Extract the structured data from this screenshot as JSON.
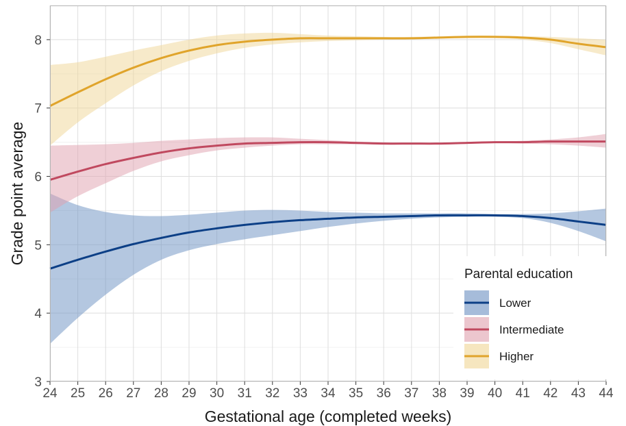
{
  "chart_data": {
    "type": "line",
    "xlabel": "Gestational age (completed weeks)",
    "ylabel": "Grade point average",
    "xlim": [
      24,
      44
    ],
    "ylim": [
      3,
      8.5
    ],
    "xticks": [
      24,
      25,
      26,
      27,
      28,
      29,
      30,
      31,
      32,
      33,
      34,
      35,
      36,
      37,
      38,
      39,
      40,
      41,
      42,
      43,
      44
    ],
    "yticks": [
      3,
      4,
      5,
      6,
      7,
      8
    ],
    "grid": true,
    "x": [
      24,
      25,
      26,
      27,
      28,
      29,
      30,
      31,
      32,
      33,
      34,
      35,
      36,
      37,
      38,
      39,
      40,
      41,
      42,
      43,
      44
    ],
    "legend": {
      "title": "Parental education",
      "position": "bottom-right"
    },
    "series": [
      {
        "name": "Lower",
        "color": "#0c3f86",
        "band_color": "#6a8fc2",
        "values": [
          4.65,
          4.78,
          4.9,
          5.01,
          5.1,
          5.18,
          5.24,
          5.29,
          5.33,
          5.36,
          5.38,
          5.4,
          5.41,
          5.42,
          5.43,
          5.43,
          5.43,
          5.42,
          5.39,
          5.34,
          5.29
        ],
        "lower": [
          3.55,
          3.93,
          4.27,
          4.56,
          4.78,
          4.92,
          5.01,
          5.08,
          5.14,
          5.2,
          5.26,
          5.31,
          5.35,
          5.38,
          5.4,
          5.41,
          5.41,
          5.39,
          5.32,
          5.2,
          5.05
        ],
        "upper": [
          5.75,
          5.58,
          5.48,
          5.43,
          5.42,
          5.44,
          5.47,
          5.5,
          5.51,
          5.5,
          5.48,
          5.47,
          5.46,
          5.46,
          5.46,
          5.46,
          5.45,
          5.45,
          5.46,
          5.49,
          5.53
        ]
      },
      {
        "name": "Intermediate",
        "color": "#c0495f",
        "band_color": "#dfa0ad",
        "values": [
          5.95,
          6.07,
          6.18,
          6.27,
          6.35,
          6.41,
          6.45,
          6.48,
          6.49,
          6.5,
          6.5,
          6.49,
          6.48,
          6.48,
          6.48,
          6.49,
          6.5,
          6.5,
          6.51,
          6.51,
          6.51
        ],
        "lower": [
          5.47,
          5.71,
          5.9,
          6.08,
          6.22,
          6.31,
          6.38,
          6.42,
          6.45,
          6.47,
          6.47,
          6.47,
          6.47,
          6.47,
          6.47,
          6.48,
          6.49,
          6.48,
          6.47,
          6.45,
          6.42
        ],
        "upper": [
          6.45,
          6.46,
          6.47,
          6.49,
          6.52,
          6.54,
          6.56,
          6.57,
          6.57,
          6.55,
          6.53,
          6.51,
          6.5,
          6.49,
          6.49,
          6.5,
          6.51,
          6.52,
          6.54,
          6.57,
          6.62
        ]
      },
      {
        "name": "Higher",
        "color": "#e0a42b",
        "band_color": "#f0d695",
        "values": [
          7.03,
          7.23,
          7.42,
          7.59,
          7.73,
          7.84,
          7.92,
          7.97,
          8.0,
          8.02,
          8.02,
          8.02,
          8.02,
          8.02,
          8.03,
          8.04,
          8.04,
          8.03,
          8.0,
          7.94,
          7.89
        ],
        "lower": [
          6.45,
          6.79,
          7.07,
          7.33,
          7.54,
          7.69,
          7.8,
          7.88,
          7.93,
          7.96,
          7.98,
          7.99,
          8.0,
          8.01,
          8.02,
          8.03,
          8.03,
          8.0,
          7.95,
          7.86,
          7.77
        ],
        "upper": [
          7.63,
          7.67,
          7.75,
          7.84,
          7.92,
          8.0,
          8.06,
          8.09,
          8.1,
          8.08,
          8.06,
          8.05,
          8.04,
          8.04,
          8.05,
          8.06,
          8.06,
          8.05,
          8.04,
          8.02,
          8.0
        ]
      }
    ]
  }
}
